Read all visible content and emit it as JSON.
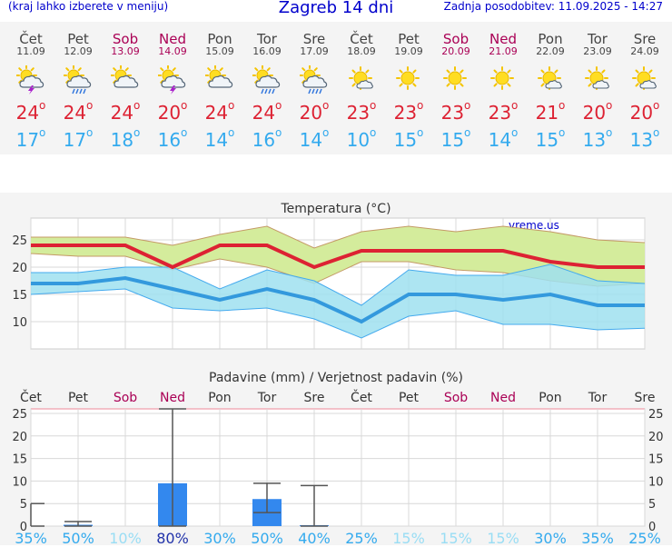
{
  "header": {
    "hint": "(kraj lahko izberete v meniju)",
    "title": "Zagreb 14 dni",
    "updated": "Zadnja posodobitev: 11.09.2025 - 14:27"
  },
  "days": [
    {
      "name": "Čet",
      "date": "11.09",
      "weekend": false,
      "icon": "thunderstorm-sun-icon",
      "tmax": "24",
      "tmin": "17"
    },
    {
      "name": "Pet",
      "date": "12.09",
      "weekend": false,
      "icon": "sun-cloud-rain-icon",
      "tmax": "24",
      "tmin": "17"
    },
    {
      "name": "Sob",
      "date": "13.09",
      "weekend": true,
      "icon": "sun-cloud-icon",
      "tmax": "24",
      "tmin": "18"
    },
    {
      "name": "Ned",
      "date": "14.09",
      "weekend": true,
      "icon": "thunderstorm-sun-icon",
      "tmax": "20",
      "tmin": "16"
    },
    {
      "name": "Pon",
      "date": "15.09",
      "weekend": false,
      "icon": "sun-cloud-icon",
      "tmax": "24",
      "tmin": "14"
    },
    {
      "name": "Tor",
      "date": "16.09",
      "weekend": false,
      "icon": "sun-cloud-rain-icon",
      "tmax": "24",
      "tmin": "16"
    },
    {
      "name": "Sre",
      "date": "17.09",
      "weekend": false,
      "icon": "sun-cloud-rain-icon",
      "tmax": "20",
      "tmin": "14"
    },
    {
      "name": "Čet",
      "date": "18.09",
      "weekend": false,
      "icon": "sun-small-cloud-icon",
      "tmax": "23",
      "tmin": "10"
    },
    {
      "name": "Pet",
      "date": "19.09",
      "weekend": false,
      "icon": "sun-icon",
      "tmax": "23",
      "tmin": "15"
    },
    {
      "name": "Sob",
      "date": "20.09",
      "weekend": true,
      "icon": "sun-icon",
      "tmax": "23",
      "tmin": "15"
    },
    {
      "name": "Ned",
      "date": "21.09",
      "weekend": true,
      "icon": "sun-icon",
      "tmax": "23",
      "tmin": "14"
    },
    {
      "name": "Pon",
      "date": "22.09",
      "weekend": false,
      "icon": "sun-small-cloud-icon",
      "tmax": "21",
      "tmin": "15"
    },
    {
      "name": "Tor",
      "date": "23.09",
      "weekend": false,
      "icon": "sun-small-cloud-icon",
      "tmax": "20",
      "tmin": "13"
    },
    {
      "name": "Sre",
      "date": "24.09",
      "weekend": false,
      "icon": "sun-small-cloud-icon",
      "tmax": "20",
      "tmin": "13"
    }
  ],
  "colors": {
    "tmax": "#dd2233",
    "tmin": "#33aaee",
    "weekend": "#aa0055",
    "header": "#0000cc",
    "precip_bar": "#3388ee",
    "max_band": "#d4ec9c",
    "min_band": "#9fe0f0",
    "overlap": "#88cc88"
  },
  "chart_data": [
    {
      "type": "line",
      "title": "Temperatura (°C)",
      "watermark": "vreme.us",
      "ylim": [
        5,
        29
      ],
      "yticks": [
        10,
        15,
        20,
        25
      ],
      "grid": true,
      "series": [
        {
          "values": [
            24,
            24,
            24,
            20,
            24,
            24,
            20,
            23,
            23,
            23,
            23,
            21,
            20,
            20
          ],
          "band_low": [
            22.5,
            22,
            22,
            19.5,
            21.5,
            20,
            17,
            21,
            21,
            19.5,
            19,
            17.5,
            16.5,
            17
          ],
          "band_high": [
            25.5,
            25.5,
            25.5,
            24,
            26,
            27.5,
            23.5,
            26.5,
            27.5,
            26.5,
            27.5,
            26.5,
            25,
            24.5
          ]
        },
        {
          "values": [
            17,
            17,
            18,
            16,
            14,
            16,
            14,
            10,
            15,
            15,
            14,
            15,
            13,
            13
          ],
          "band_low": [
            15,
            15.5,
            16,
            12.5,
            12,
            12.5,
            10.5,
            7,
            11,
            12,
            9.5,
            9.5,
            8.5,
            8.8
          ],
          "band_high": [
            19,
            19,
            20,
            20,
            16,
            19.5,
            17.5,
            13,
            19.5,
            18.5,
            18.5,
            20.5,
            17.5,
            17
          ]
        }
      ]
    },
    {
      "type": "bar",
      "title": "Padavine (mm) / Verjetnost padavin (%)",
      "categories": [
        "Čet",
        "Pet",
        "Sob",
        "Ned",
        "Pon",
        "Tor",
        "Sre",
        "Čet",
        "Pet",
        "Sob",
        "Ned",
        "Pon",
        "Tor",
        "Sre"
      ],
      "weekend": [
        false,
        false,
        true,
        true,
        false,
        false,
        false,
        false,
        false,
        true,
        true,
        false,
        false,
        false
      ],
      "values": [
        0,
        0.3,
        0,
        9.5,
        0,
        6,
        0.2,
        0,
        0,
        0,
        0,
        0,
        0,
        0
      ],
      "error_high": [
        5,
        1,
        0,
        26,
        0,
        9.5,
        9,
        0,
        0,
        0,
        0,
        0,
        0,
        0
      ],
      "error_low": [
        0,
        0,
        0,
        0,
        0,
        3,
        0,
        0,
        0,
        0,
        0,
        0,
        0,
        0
      ],
      "probability": [
        "35%",
        "50%",
        "10%",
        "80%",
        "30%",
        "50%",
        "40%",
        "25%",
        "15%",
        "15%",
        "15%",
        "30%",
        "35%",
        "25%"
      ],
      "probability_color": [
        "#33aaee",
        "#33aaee",
        "#99ddf4",
        "#2233aa",
        "#33aaee",
        "#33aaee",
        "#33aaee",
        "#33aaee",
        "#99ddf4",
        "#99ddf4",
        "#99ddf4",
        "#33aaee",
        "#33aaee",
        "#33aaee"
      ],
      "ylim": [
        0,
        26
      ],
      "yticks": [
        0,
        5,
        10,
        15,
        20,
        25
      ]
    }
  ]
}
